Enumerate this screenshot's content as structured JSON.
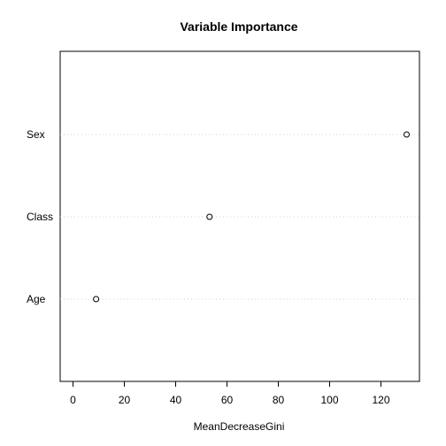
{
  "chart_data": {
    "type": "scatter",
    "title": "Variable Importance",
    "xlabel": "MeanDecreaseGini",
    "ylabel": "",
    "categories": [
      "Sex",
      "Class",
      "Age"
    ],
    "values": [
      130,
      53.2,
      9
    ],
    "xlim": [
      -5,
      135
    ],
    "xticks": [
      0,
      20,
      40,
      60,
      80,
      100,
      120
    ],
    "grid": "dotted horizontal guide lines",
    "marker": "open circle"
  }
}
